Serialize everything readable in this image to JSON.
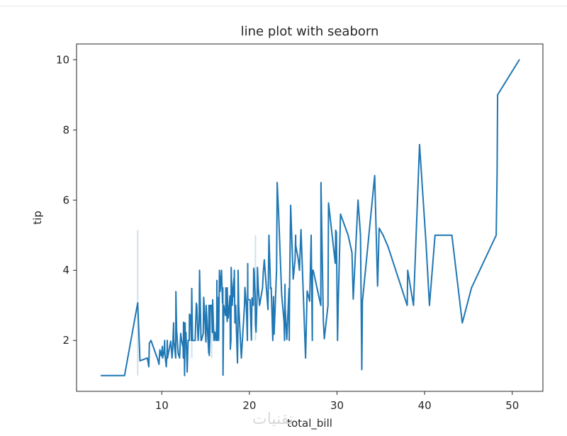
{
  "chart_data": {
    "type": "line",
    "title": "line plot with seaborn",
    "xlabel": "total_bill",
    "ylabel": "tip",
    "xlim": [
      0.27,
      53.5
    ],
    "ylim": [
      0.55,
      10.45
    ],
    "xticks": [
      10,
      20,
      30,
      40,
      50
    ],
    "yticks": [
      2,
      4,
      6,
      8,
      10
    ],
    "grid": false,
    "color": "#1f77b4",
    "series": [
      {
        "values": [
          [
            3.07,
            1.0
          ],
          [
            5.75,
            1.0
          ],
          [
            7.25,
            3.07
          ],
          [
            7.51,
            1.42
          ],
          [
            8.35,
            1.5
          ],
          [
            8.52,
            1.25
          ],
          [
            8.58,
            1.92
          ],
          [
            8.77,
            2.0
          ],
          [
            9.55,
            1.45
          ],
          [
            9.68,
            1.32
          ],
          [
            9.78,
            1.73
          ],
          [
            9.94,
            1.56
          ],
          [
            10.07,
            1.83
          ],
          [
            10.09,
            1.5
          ],
          [
            10.27,
            1.71
          ],
          [
            10.33,
            2.0
          ],
          [
            10.34,
            1.66
          ],
          [
            10.51,
            1.25
          ],
          [
            10.59,
            1.61
          ],
          [
            10.63,
            2.0
          ],
          [
            10.65,
            1.5
          ],
          [
            11.02,
            1.98
          ],
          [
            11.17,
            1.5
          ],
          [
            11.24,
            1.76
          ],
          [
            11.35,
            2.5
          ],
          [
            11.38,
            2.0
          ],
          [
            11.59,
            1.5
          ],
          [
            11.61,
            3.39
          ],
          [
            11.69,
            2.31
          ],
          [
            11.87,
            1.63
          ],
          [
            12.03,
            1.5
          ],
          [
            12.16,
            2.2
          ],
          [
            12.26,
            2.0
          ],
          [
            12.43,
            1.8
          ],
          [
            12.46,
            1.5
          ],
          [
            12.48,
            2.52
          ],
          [
            12.54,
            2.5
          ],
          [
            12.6,
            1.0
          ],
          [
            12.66,
            2.5
          ],
          [
            12.69,
            2.0
          ],
          [
            12.74,
            2.01
          ],
          [
            12.76,
            2.23
          ],
          [
            12.9,
            1.1
          ],
          [
            13.0,
            2.0
          ],
          [
            13.03,
            2.0
          ],
          [
            13.13,
            2.0
          ],
          [
            13.16,
            2.75
          ],
          [
            13.27,
            2.5
          ],
          [
            13.28,
            2.72
          ],
          [
            13.37,
            2.0
          ],
          [
            13.39,
            2.61
          ],
          [
            13.42,
            3.48
          ],
          [
            13.51,
            2.0
          ],
          [
            13.81,
            2.0
          ],
          [
            13.94,
            3.06
          ],
          [
            14.0,
            3.0
          ],
          [
            14.07,
            2.5
          ],
          [
            14.15,
            2.0
          ],
          [
            14.26,
            2.5
          ],
          [
            14.31,
            4.0
          ],
          [
            14.48,
            2.0
          ],
          [
            14.52,
            2.0
          ],
          [
            14.73,
            2.2
          ],
          [
            14.78,
            3.23
          ],
          [
            14.83,
            3.02
          ],
          [
            15.01,
            2.09
          ],
          [
            15.04,
            1.96
          ],
          [
            15.06,
            3.0
          ],
          [
            15.36,
            1.64
          ],
          [
            15.38,
            3.0
          ],
          [
            15.42,
            1.57
          ],
          [
            15.48,
            2.02
          ],
          [
            15.53,
            3.0
          ],
          [
            15.69,
            3.0
          ],
          [
            15.77,
            2.23
          ],
          [
            15.81,
            3.16
          ],
          [
            15.95,
            2.0
          ],
          [
            15.98,
            2.03
          ],
          [
            16.0,
            2.0
          ],
          [
            16.04,
            2.24
          ],
          [
            16.21,
            2.0
          ],
          [
            16.27,
            2.5
          ],
          [
            16.29,
            3.71
          ],
          [
            16.31,
            2.0
          ],
          [
            16.4,
            2.5
          ],
          [
            16.43,
            2.3
          ],
          [
            16.45,
            2.47
          ],
          [
            16.47,
            3.23
          ],
          [
            16.49,
            2.0
          ],
          [
            16.58,
            4.0
          ],
          [
            16.66,
            3.4
          ],
          [
            16.82,
            4.0
          ],
          [
            16.93,
            3.07
          ],
          [
            16.97,
            3.5
          ],
          [
            16.99,
            1.01
          ],
          [
            17.07,
            3.0
          ],
          [
            17.26,
            2.74
          ],
          [
            17.29,
            2.71
          ],
          [
            17.31,
            3.5
          ],
          [
            17.46,
            2.54
          ],
          [
            17.47,
            3.5
          ],
          [
            17.51,
            3.0
          ],
          [
            17.59,
            2.64
          ],
          [
            17.78,
            3.27
          ],
          [
            17.81,
            2.34
          ],
          [
            17.82,
            1.75
          ],
          [
            17.89,
            2.0
          ],
          [
            17.92,
            4.08
          ],
          [
            18.04,
            3.0
          ],
          [
            18.15,
            3.5
          ],
          [
            18.24,
            3.76
          ],
          [
            18.26,
            3.25
          ],
          [
            18.28,
            4.0
          ],
          [
            18.29,
            3.76
          ],
          [
            18.35,
            2.5
          ],
          [
            18.43,
            3.0
          ],
          [
            18.64,
            1.36
          ],
          [
            18.69,
            2.31
          ],
          [
            18.71,
            4.0
          ],
          [
            18.78,
            3.0
          ],
          [
            19.08,
            1.5
          ],
          [
            19.44,
            3.0
          ],
          [
            19.49,
            3.51
          ],
          [
            19.65,
            3.0
          ],
          [
            19.77,
            2.0
          ],
          [
            19.81,
            4.19
          ],
          [
            19.82,
            3.18
          ],
          [
            20.08,
            3.15
          ],
          [
            20.23,
            2.01
          ],
          [
            20.27,
            2.83
          ],
          [
            20.29,
            3.21
          ],
          [
            20.45,
            3.0
          ],
          [
            20.49,
            4.06
          ],
          [
            20.53,
            4.0
          ],
          [
            20.65,
            3.35
          ],
          [
            20.69,
            2.45
          ],
          [
            20.76,
            2.24
          ],
          [
            20.9,
            3.5
          ],
          [
            20.92,
            4.08
          ],
          [
            21.01,
            3.5
          ],
          [
            21.16,
            3.0
          ],
          [
            21.5,
            3.5
          ],
          [
            21.58,
            3.92
          ],
          [
            21.7,
            4.3
          ],
          [
            22.12,
            2.88
          ],
          [
            22.23,
            5.0
          ],
          [
            22.42,
            3.48
          ],
          [
            22.49,
            3.5
          ],
          [
            22.67,
            2.0
          ],
          [
            22.75,
            3.25
          ],
          [
            22.76,
            3.0
          ],
          [
            22.82,
            2.18
          ],
          [
            23.1,
            4.0
          ],
          [
            23.17,
            6.5
          ],
          [
            23.33,
            5.65
          ],
          [
            23.68,
            3.31
          ],
          [
            23.95,
            2.55
          ],
          [
            24.01,
            2.0
          ],
          [
            24.06,
            3.6
          ],
          [
            24.08,
            2.92
          ],
          [
            24.27,
            2.03
          ],
          [
            24.52,
            3.48
          ],
          [
            24.55,
            2.0
          ],
          [
            24.59,
            3.61
          ],
          [
            24.71,
            5.85
          ],
          [
            25.0,
            3.75
          ],
          [
            25.21,
            4.29
          ],
          [
            25.28,
            5.0
          ],
          [
            25.29,
            4.71
          ],
          [
            25.56,
            4.34
          ],
          [
            25.71,
            4.0
          ],
          [
            25.89,
            5.16
          ],
          [
            26.41,
            1.5
          ],
          [
            26.59,
            3.41
          ],
          [
            26.86,
            3.14
          ],
          [
            26.88,
            3.12
          ],
          [
            27.05,
            5.0
          ],
          [
            27.18,
            2.0
          ],
          [
            27.2,
            4.0
          ],
          [
            27.28,
            4.0
          ],
          [
            28.15,
            3.0
          ],
          [
            28.17,
            6.5
          ],
          [
            28.44,
            2.56
          ],
          [
            28.55,
            2.05
          ],
          [
            28.97,
            3.0
          ],
          [
            29.03,
            5.92
          ],
          [
            29.8,
            4.2
          ],
          [
            29.85,
            5.14
          ],
          [
            29.93,
            5.07
          ],
          [
            30.06,
            2.0
          ],
          [
            30.14,
            3.09
          ],
          [
            30.4,
            5.6
          ],
          [
            31.27,
            5.0
          ],
          [
            31.71,
            4.5
          ],
          [
            31.85,
            3.18
          ],
          [
            32.4,
            6.0
          ],
          [
            32.68,
            5.0
          ],
          [
            32.83,
            1.17
          ],
          [
            32.9,
            3.11
          ],
          [
            34.3,
            6.7
          ],
          [
            34.63,
            3.55
          ],
          [
            34.65,
            3.68
          ],
          [
            34.81,
            5.2
          ],
          [
            35.26,
            5.0
          ],
          [
            35.83,
            4.67
          ],
          [
            38.01,
            3.0
          ],
          [
            38.07,
            4.0
          ],
          [
            38.73,
            3.0
          ],
          [
            39.42,
            7.58
          ],
          [
            40.17,
            4.73
          ],
          [
            40.55,
            3.0
          ],
          [
            41.19,
            5.0
          ],
          [
            43.11,
            5.0
          ],
          [
            44.3,
            2.5
          ],
          [
            45.35,
            3.5
          ],
          [
            48.17,
            5.0
          ],
          [
            48.27,
            6.73
          ],
          [
            48.33,
            9.0
          ],
          [
            50.81,
            10.0
          ]
        ]
      }
    ],
    "ci_bands": [
      [
        7.25,
        1.0,
        5.15
      ],
      [
        13.42,
        1.5,
        3.5
      ],
      [
        15.69,
        1.5,
        3.0
      ],
      [
        20.69,
        2.0,
        5.0
      ]
    ]
  },
  "watermark": "تقنيات"
}
